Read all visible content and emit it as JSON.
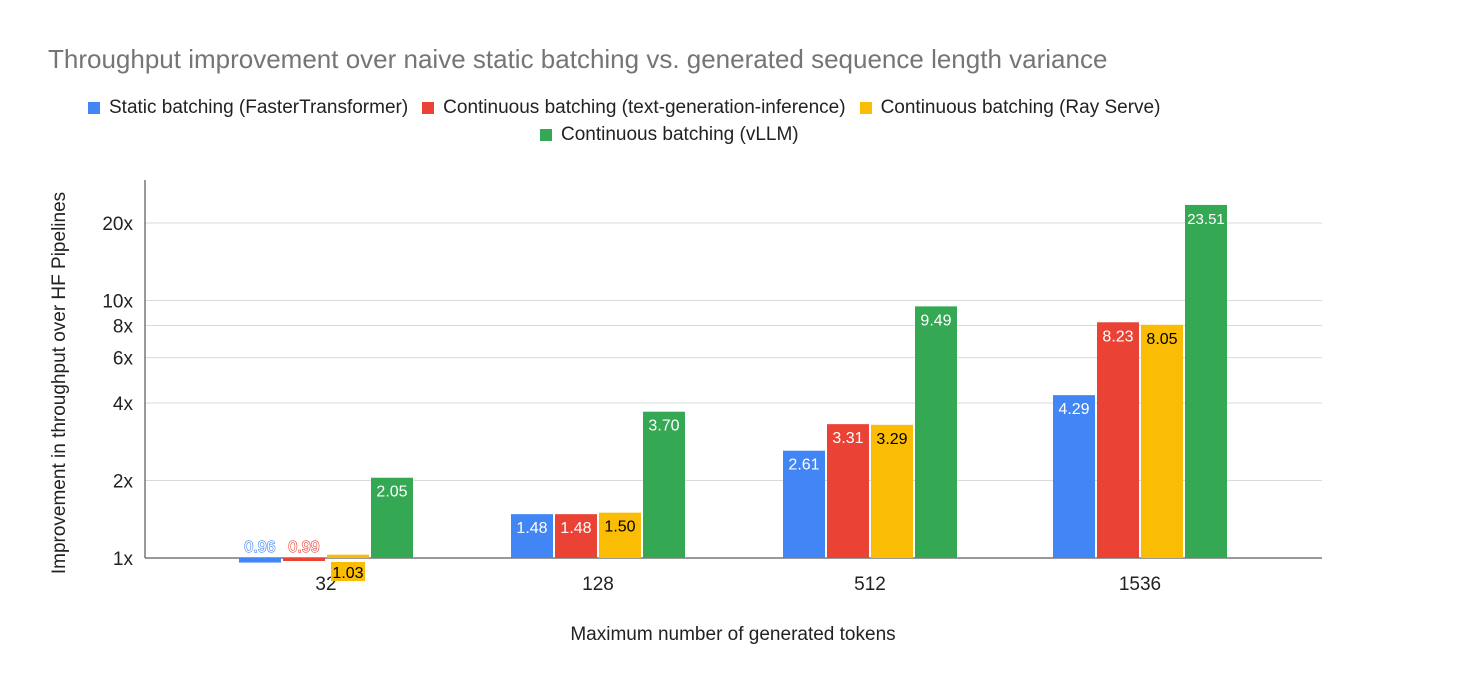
{
  "chart_data": {
    "type": "bar",
    "title": "Throughput improvement over naive static batching vs. generated sequence length variance",
    "xlabel": "Maximum number of generated tokens",
    "ylabel": "Improvement in throughput over HF Pipelines",
    "yscale": "log",
    "ylim": [
      0.9,
      30
    ],
    "yticks": [
      {
        "value": 1,
        "label": "1x"
      },
      {
        "value": 2,
        "label": "2x"
      },
      {
        "value": 4,
        "label": "4x"
      },
      {
        "value": 6,
        "label": "6x"
      },
      {
        "value": 8,
        "label": "8x"
      },
      {
        "value": 10,
        "label": "10x"
      },
      {
        "value": 20,
        "label": "20x"
      }
    ],
    "grid": true,
    "legend_position": "top",
    "categories": [
      "32",
      "128",
      "512",
      "1536"
    ],
    "series": [
      {
        "name": "Static batching (FasterTransformer)",
        "color": "#4285f4",
        "label_color": "#ffffff",
        "values": [
          0.96,
          1.48,
          2.61,
          4.29
        ],
        "labels": [
          "0.96",
          "1.48",
          "2.61",
          "4.29"
        ]
      },
      {
        "name": "Continuous batching (text-generation-inference)",
        "color": "#ea4335",
        "label_color": "#ffffff",
        "values": [
          0.99,
          1.48,
          3.31,
          8.23
        ],
        "labels": [
          "0.99",
          "1.48",
          "3.31",
          "8.23"
        ]
      },
      {
        "name": "Continuous batching (Ray Serve)",
        "color": "#fbbc04",
        "label_color": "#000000",
        "values": [
          1.03,
          1.5,
          3.29,
          8.05
        ],
        "labels": [
          "1.03",
          "1.50",
          "3.29",
          "8.05"
        ]
      },
      {
        "name": "Continuous batching (vLLM)",
        "color": "#34a853",
        "label_color": "#ffffff",
        "values": [
          2.05,
          3.7,
          9.49,
          23.51
        ],
        "labels": [
          "2.05",
          "3.70",
          "9.49",
          "23.51"
        ]
      }
    ]
  }
}
